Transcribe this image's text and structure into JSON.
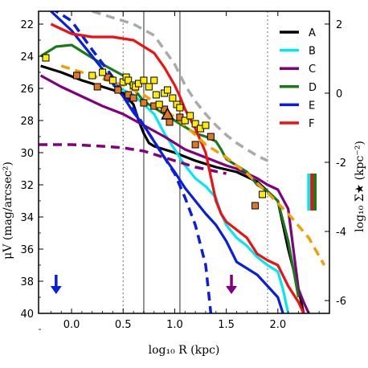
{
  "chart_data": {
    "type": "line",
    "xlabel": "log₁₀ R (kpc)",
    "ylabel_left": "μV (mag/arcsec²)",
    "ylabel_right": "log₁₀ Σ★ (kpc⁻²)",
    "xlim": [
      -0.32,
      2.5
    ],
    "ylim_left": [
      40,
      21.2
    ],
    "ylim_right": [
      -6.37,
      2.37
    ],
    "x_ticks": [
      0.0,
      0.5,
      1.0,
      1.5,
      2.0
    ],
    "x_tick_labels": [
      "0.0",
      "0.5",
      "1.0",
      "1.5",
      "2.0"
    ],
    "y_left_ticks": [
      22,
      24,
      26,
      28,
      30,
      32,
      34,
      36,
      38,
      40
    ],
    "y_left_tick_labels": [
      "22",
      "24",
      "26",
      "28",
      "30",
      "32",
      "34",
      "36",
      "38",
      "40"
    ],
    "y_right_ticks": [
      2,
      0,
      -2,
      -4,
      -6
    ],
    "y_right_tick_labels": [
      "2",
      "0",
      "-2",
      "-4",
      "-6"
    ],
    "vlines": [
      {
        "x": 0.5,
        "style": "dotted",
        "color": "#888888"
      },
      {
        "x": 0.7,
        "style": "solid",
        "color": "#888888"
      },
      {
        "x": 1.05,
        "style": "solid",
        "color": "#888888"
      },
      {
        "x": 1.9,
        "style": "dotted",
        "color": "#888888"
      }
    ],
    "legend": {
      "placement": "top-right",
      "entries": [
        {
          "label": "A",
          "color": "#000000"
        },
        {
          "label": "B",
          "color": "#00e8f0"
        },
        {
          "label": "C",
          "color": "#800080"
        },
        {
          "label": "D",
          "color": "#1a7a1a"
        },
        {
          "label": "E",
          "color": "#0a1ee0"
        },
        {
          "label": "F",
          "color": "#f01010"
        }
      ]
    },
    "series": [
      {
        "name": "A",
        "color": "#000000",
        "style": "solid",
        "x": [
          -0.3,
          -0.1,
          0.1,
          0.3,
          0.5,
          0.6,
          0.65,
          0.7,
          0.75,
          0.8,
          1.0,
          1.2,
          1.4,
          1.6,
          1.8,
          1.9,
          2.0,
          2.1,
          2.2,
          2.25
        ],
        "y": [
          24.6,
          25.0,
          25.5,
          25.9,
          26.3,
          27.0,
          28.0,
          28.8,
          29.4,
          29.6,
          30.0,
          30.5,
          30.9,
          31.2,
          31.8,
          32.4,
          33.0,
          36.0,
          38.5,
          40.0
        ]
      },
      {
        "name": "B",
        "color": "#00e8f0",
        "style": "solid",
        "x": [
          0.4,
          0.6,
          0.7,
          0.8,
          0.9,
          1.0,
          1.1,
          1.2,
          1.3,
          1.4,
          1.45,
          1.5,
          1.6,
          1.7,
          1.8,
          1.9,
          2.0,
          2.05,
          2.1
        ],
        "y": [
          25.8,
          26.4,
          27.0,
          27.6,
          28.8,
          29.8,
          30.8,
          31.6,
          32.1,
          32.8,
          33.8,
          34.5,
          35.3,
          35.8,
          36.5,
          37.0,
          37.4,
          38.5,
          40.0
        ]
      },
      {
        "name": "C",
        "color": "#800080",
        "style": "solid",
        "x": [
          -0.3,
          -0.1,
          0.1,
          0.3,
          0.5,
          0.7,
          0.9,
          1.1,
          1.3,
          1.5,
          1.6,
          1.7,
          1.8,
          1.9,
          2.0,
          2.1,
          2.15,
          2.2,
          2.25,
          2.3
        ],
        "y": [
          25.2,
          25.9,
          26.5,
          27.1,
          27.6,
          28.3,
          29.0,
          29.8,
          30.3,
          30.8,
          31.0,
          31.3,
          31.6,
          32.0,
          32.3,
          33.5,
          36.0,
          38.5,
          39.3,
          40.0
        ]
      },
      {
        "name": "C",
        "color": "#800080",
        "style": "dashed",
        "x": [
          -0.32,
          0.0,
          0.3,
          0.5,
          0.7,
          0.8,
          0.9,
          1.0,
          1.1,
          1.2,
          1.35,
          1.5
        ],
        "y": [
          29.5,
          29.5,
          29.6,
          29.7,
          29.9,
          30.1,
          30.3,
          30.5,
          30.7,
          30.9,
          31.1,
          31.3
        ]
      },
      {
        "name": "D",
        "color": "#1a7a1a",
        "style": "solid",
        "x": [
          -0.3,
          -0.15,
          0.0,
          0.15,
          0.3,
          0.5,
          0.6,
          0.7,
          0.8,
          0.9,
          1.0,
          1.1,
          1.2,
          1.3,
          1.4,
          1.45,
          1.5,
          1.6,
          1.7,
          1.8,
          1.9,
          2.0,
          2.1,
          2.2
        ],
        "y": [
          24.0,
          23.4,
          23.3,
          23.9,
          24.5,
          25.2,
          26.0,
          26.8,
          27.2,
          27.6,
          28.0,
          28.4,
          28.8,
          29.0,
          29.3,
          29.8,
          30.4,
          30.8,
          31.2,
          32.0,
          32.4,
          33.0,
          35.5,
          39.0
        ]
      },
      {
        "name": "E",
        "color": "#0a1ee0",
        "style": "solid",
        "x": [
          -0.2,
          -0.1,
          0.0,
          0.1,
          0.2,
          0.3,
          0.4,
          0.5,
          0.6,
          0.7,
          0.75,
          0.8,
          0.85,
          0.9,
          1.0,
          1.1,
          1.2,
          1.3,
          1.4,
          1.45,
          1.5,
          1.6,
          1.7,
          1.8,
          1.9,
          2.0,
          2.05
        ],
        "y": [
          21.2,
          21.8,
          22.4,
          23.2,
          24.0,
          24.8,
          25.7,
          26.5,
          27.5,
          28.3,
          28.8,
          29.3,
          29.8,
          30.3,
          31.2,
          32.2,
          33.0,
          33.8,
          34.5,
          35.0,
          35.5,
          36.8,
          37.2,
          37.6,
          38.3,
          39.0,
          40.0
        ]
      },
      {
        "name": "E",
        "color": "#0a1ee0",
        "style": "dashed",
        "x": [
          -0.32,
          0.0,
          0.2,
          0.4,
          0.6,
          0.8,
          1.0,
          1.1,
          1.2,
          1.3,
          1.35
        ],
        "y": [
          20.5,
          21.8,
          23.6,
          25.3,
          27.3,
          29.3,
          31.3,
          32.8,
          34.5,
          37.0,
          40.0
        ]
      },
      {
        "name": "F",
        "color": "#f01010",
        "style": "solid",
        "x": [
          -0.2,
          0.0,
          0.2,
          0.4,
          0.6,
          0.8,
          0.9,
          1.0,
          1.05,
          1.1,
          1.2,
          1.3,
          1.35,
          1.4,
          1.45,
          1.5,
          1.6,
          1.7,
          1.8,
          1.9,
          2.0,
          2.1,
          2.2,
          2.25
        ],
        "y": [
          22.0,
          22.6,
          22.8,
          22.8,
          23.0,
          23.8,
          24.7,
          25.8,
          26.5,
          27.3,
          28.5,
          30.0,
          31.5,
          33.0,
          33.8,
          34.3,
          34.8,
          35.3,
          36.3,
          36.7,
          37.0,
          38.3,
          39.3,
          40.0
        ]
      },
      {
        "name": "",
        "color": "#aaaaaa",
        "style": "dashed",
        "x": [
          0.2,
          0.4,
          0.6,
          0.8,
          1.0,
          1.1,
          1.2,
          1.3,
          1.4,
          1.5,
          1.6,
          1.7,
          1.8,
          1.9
        ],
        "y": [
          21.2,
          21.6,
          22.0,
          22.7,
          24.5,
          25.8,
          26.8,
          27.6,
          28.3,
          28.9,
          29.4,
          29.8,
          30.2,
          30.5
        ]
      },
      {
        "name": "",
        "color": "#f0a000",
        "style": "dashed",
        "x": [
          -0.1,
          0.1,
          0.3,
          0.5,
          0.7,
          0.9,
          1.1,
          1.3,
          1.5,
          1.7,
          1.9,
          2.1,
          2.3,
          2.45
        ],
        "y": [
          24.6,
          25.0,
          25.4,
          25.8,
          26.4,
          27.3,
          28.3,
          29.5,
          30.3,
          31.3,
          32.5,
          33.8,
          35.3,
          37.0
        ]
      }
    ],
    "markers": {
      "yellow_squares": {
        "color": "#ffee00",
        "points": [
          [
            -0.25,
            24.1
          ],
          [
            0.2,
            25.2
          ],
          [
            0.3,
            25.0
          ],
          [
            0.4,
            25.5
          ],
          [
            0.5,
            25.6
          ],
          [
            0.53,
            25.3
          ],
          [
            0.55,
            25.5
          ],
          [
            0.6,
            25.8
          ],
          [
            0.62,
            25.9
          ],
          [
            0.65,
            25.7
          ],
          [
            0.7,
            25.5
          ],
          [
            0.75,
            25.9
          ],
          [
            0.8,
            25.5
          ],
          [
            0.82,
            26.4
          ],
          [
            0.85,
            27.0
          ],
          [
            0.9,
            26.3
          ],
          [
            0.93,
            26.1
          ],
          [
            0.98,
            26.6
          ],
          [
            1.02,
            27.0
          ],
          [
            1.05,
            27.2
          ],
          [
            1.1,
            28.0
          ],
          [
            1.15,
            27.7
          ],
          [
            1.2,
            28.2
          ],
          [
            1.25,
            28.5
          ],
          [
            1.3,
            28.3
          ],
          [
            1.85,
            32.6
          ]
        ]
      },
      "orange_squares": {
        "color": "#e07820",
        "points": [
          [
            0.05,
            25.2
          ],
          [
            0.25,
            25.9
          ],
          [
            0.35,
            25.3
          ],
          [
            0.45,
            26.1
          ],
          [
            0.55,
            26.4
          ],
          [
            0.6,
            26.6
          ],
          [
            0.7,
            26.9
          ],
          [
            0.8,
            27.1
          ],
          [
            0.9,
            27.3
          ],
          [
            0.95,
            28.1
          ],
          [
            1.05,
            27.8
          ],
          [
            1.2,
            29.5
          ],
          [
            1.35,
            29.0
          ],
          [
            1.78,
            33.3
          ]
        ]
      },
      "triangle": {
        "x": 0.93,
        "y": 27.6,
        "color": "#e07820"
      },
      "arrows": [
        {
          "x": -0.15,
          "y_from": 37.6,
          "y_to": 38.7,
          "color": "#0a1ee0"
        },
        {
          "x": 1.55,
          "y_from": 37.6,
          "y_to": 38.7,
          "color": "#800080"
        }
      ]
    },
    "color_bars": [
      {
        "x": 2.3,
        "y_from": 31.3,
        "y_to": 33.6,
        "color": "#00e8f0"
      },
      {
        "x": 2.33,
        "y_from": 31.3,
        "y_to": 33.6,
        "color": "#f01010"
      },
      {
        "x": 2.36,
        "y_from": 31.3,
        "y_to": 33.6,
        "color": "#1a7a1a"
      }
    ]
  }
}
